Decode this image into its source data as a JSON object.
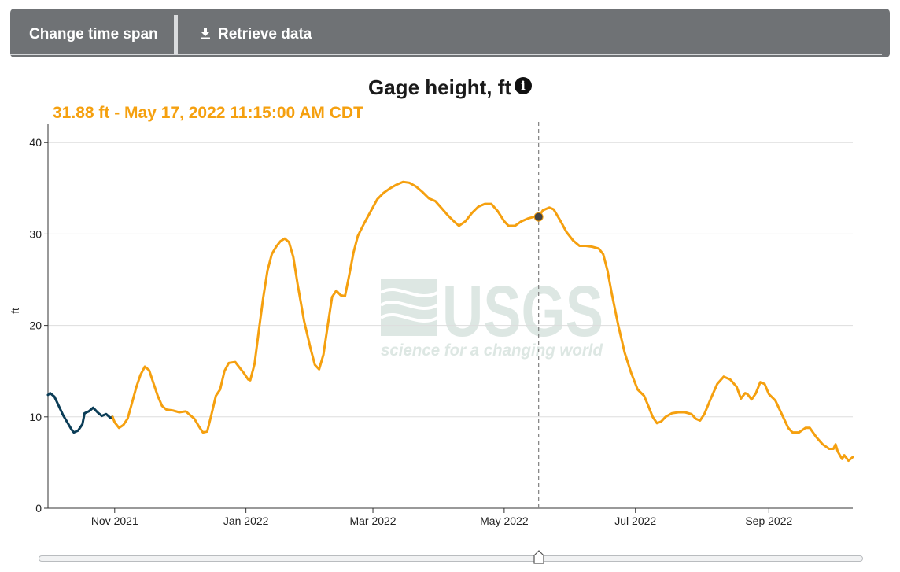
{
  "toolbar": {
    "change_time_span_label": "Change time span",
    "retrieve_data_label": "Retrieve data",
    "retrieve_icon": "download-icon"
  },
  "colors": {
    "approved": "#0b3d57",
    "provisional": "#f5a00f",
    "toolbar_bg": "#6f7275",
    "grid": "#dddddd",
    "watermark": "#dde7e3"
  },
  "tooltip": {
    "value_text": "31.88 ft - May 17, 2022 11:15:00 AM CDT",
    "date": "2022-05-17",
    "value": 31.88
  },
  "watermark": {
    "logo_text": "USGS",
    "tagline": "science for a changing world"
  },
  "slider": {
    "handle_date": "2022-05-17"
  },
  "chart_data": {
    "type": "line",
    "title": "Gage height, ft",
    "xlabel": "",
    "ylabel": "ft",
    "xlim": [
      "2021-10-01",
      "2022-10-10"
    ],
    "ylim": [
      0,
      42
    ],
    "yticks": [
      0,
      10,
      20,
      30,
      40
    ],
    "xticks": [
      {
        "date": "2021-11-01",
        "label": "Nov 2021"
      },
      {
        "date": "2022-01-01",
        "label": "Jan 2022"
      },
      {
        "date": "2022-03-01",
        "label": "Mar 2022"
      },
      {
        "date": "2022-05-01",
        "label": "May 2022"
      },
      {
        "date": "2022-07-01",
        "label": "Jul 2022"
      },
      {
        "date": "2022-09-01",
        "label": "Sep 2022"
      }
    ],
    "grid": true,
    "series": [
      {
        "status": "approved",
        "color": "#0b3d57",
        "points": [
          [
            "2021-10-01",
            12.4
          ],
          [
            "2021-10-02",
            12.6
          ],
          [
            "2021-10-04",
            12.2
          ],
          [
            "2021-10-06",
            11.2
          ],
          [
            "2021-10-08",
            10.2
          ],
          [
            "2021-10-10",
            9.4
          ],
          [
            "2021-10-12",
            8.6
          ],
          [
            "2021-10-13",
            8.3
          ],
          [
            "2021-10-15",
            8.5
          ],
          [
            "2021-10-17",
            9.2
          ],
          [
            "2021-10-18",
            10.4
          ],
          [
            "2021-10-20",
            10.6
          ],
          [
            "2021-10-22",
            11.0
          ],
          [
            "2021-10-24",
            10.5
          ],
          [
            "2021-10-26",
            10.1
          ],
          [
            "2021-10-28",
            10.3
          ],
          [
            "2021-10-30",
            9.9
          ],
          [
            "2021-10-31",
            10.0
          ]
        ]
      },
      {
        "status": "provisional",
        "color": "#f5a00f",
        "points": [
          [
            "2021-10-31",
            10.0
          ],
          [
            "2021-11-01",
            9.4
          ],
          [
            "2021-11-03",
            8.8
          ],
          [
            "2021-11-05",
            9.1
          ],
          [
            "2021-11-07",
            9.8
          ],
          [
            "2021-11-09",
            11.5
          ],
          [
            "2021-11-11",
            13.2
          ],
          [
            "2021-11-13",
            14.6
          ],
          [
            "2021-11-15",
            15.5
          ],
          [
            "2021-11-17",
            15.1
          ],
          [
            "2021-11-19",
            13.7
          ],
          [
            "2021-11-21",
            12.3
          ],
          [
            "2021-11-23",
            11.2
          ],
          [
            "2021-11-25",
            10.8
          ],
          [
            "2021-11-28",
            10.7
          ],
          [
            "2021-12-01",
            10.5
          ],
          [
            "2021-12-04",
            10.6
          ],
          [
            "2021-12-06",
            10.2
          ],
          [
            "2021-12-08",
            9.8
          ],
          [
            "2021-12-10",
            9.0
          ],
          [
            "2021-12-12",
            8.3
          ],
          [
            "2021-12-14",
            8.4
          ],
          [
            "2021-12-16",
            10.3
          ],
          [
            "2021-12-18",
            12.3
          ],
          [
            "2021-12-20",
            13.0
          ],
          [
            "2021-12-22",
            15.0
          ],
          [
            "2021-12-24",
            15.9
          ],
          [
            "2021-12-27",
            16.0
          ],
          [
            "2021-12-29",
            15.4
          ],
          [
            "2021-12-31",
            14.8
          ],
          [
            "2022-01-02",
            14.1
          ],
          [
            "2022-01-03",
            14.0
          ],
          [
            "2022-01-05",
            15.8
          ],
          [
            "2022-01-07",
            19.5
          ],
          [
            "2022-01-09",
            23.0
          ],
          [
            "2022-01-11",
            26.0
          ],
          [
            "2022-01-13",
            27.8
          ],
          [
            "2022-01-15",
            28.6
          ],
          [
            "2022-01-17",
            29.2
          ],
          [
            "2022-01-19",
            29.5
          ],
          [
            "2022-01-21",
            29.1
          ],
          [
            "2022-01-23",
            27.5
          ],
          [
            "2022-01-25",
            24.5
          ],
          [
            "2022-01-28",
            20.5
          ],
          [
            "2022-01-31",
            17.5
          ],
          [
            "2022-02-02",
            15.7
          ],
          [
            "2022-02-04",
            15.2
          ],
          [
            "2022-02-06",
            16.8
          ],
          [
            "2022-02-08",
            20.0
          ],
          [
            "2022-02-10",
            23.1
          ],
          [
            "2022-02-12",
            23.8
          ],
          [
            "2022-02-14",
            23.3
          ],
          [
            "2022-02-16",
            23.2
          ],
          [
            "2022-02-18",
            25.5
          ],
          [
            "2022-02-20",
            28.0
          ],
          [
            "2022-02-22",
            29.8
          ],
          [
            "2022-02-25",
            31.2
          ],
          [
            "2022-02-28",
            32.5
          ],
          [
            "2022-03-03",
            33.8
          ],
          [
            "2022-03-06",
            34.5
          ],
          [
            "2022-03-09",
            35.0
          ],
          [
            "2022-03-12",
            35.4
          ],
          [
            "2022-03-15",
            35.7
          ],
          [
            "2022-03-18",
            35.6
          ],
          [
            "2022-03-21",
            35.2
          ],
          [
            "2022-03-24",
            34.6
          ],
          [
            "2022-03-27",
            33.9
          ],
          [
            "2022-03-30",
            33.6
          ],
          [
            "2022-04-02",
            32.8
          ],
          [
            "2022-04-05",
            32.0
          ],
          [
            "2022-04-08",
            31.3
          ],
          [
            "2022-04-10",
            30.9
          ],
          [
            "2022-04-13",
            31.4
          ],
          [
            "2022-04-16",
            32.3
          ],
          [
            "2022-04-19",
            33.0
          ],
          [
            "2022-04-22",
            33.3
          ],
          [
            "2022-04-25",
            33.3
          ],
          [
            "2022-04-28",
            32.5
          ],
          [
            "2022-05-01",
            31.4
          ],
          [
            "2022-05-03",
            30.9
          ],
          [
            "2022-05-06",
            30.9
          ],
          [
            "2022-05-09",
            31.4
          ],
          [
            "2022-05-12",
            31.7
          ],
          [
            "2022-05-15",
            31.9
          ],
          [
            "2022-05-17",
            31.88
          ],
          [
            "2022-05-19",
            32.6
          ],
          [
            "2022-05-22",
            32.9
          ],
          [
            "2022-05-24",
            32.7
          ],
          [
            "2022-05-27",
            31.5
          ],
          [
            "2022-05-30",
            30.2
          ],
          [
            "2022-06-02",
            29.3
          ],
          [
            "2022-06-05",
            28.7
          ],
          [
            "2022-06-08",
            28.7
          ],
          [
            "2022-06-11",
            28.6
          ],
          [
            "2022-06-14",
            28.4
          ],
          [
            "2022-06-16",
            27.8
          ],
          [
            "2022-06-18",
            26.0
          ],
          [
            "2022-06-20",
            23.5
          ],
          [
            "2022-06-23",
            20.0
          ],
          [
            "2022-06-26",
            17.0
          ],
          [
            "2022-06-29",
            14.8
          ],
          [
            "2022-07-02",
            13.0
          ],
          [
            "2022-07-05",
            12.3
          ],
          [
            "2022-07-07",
            11.2
          ],
          [
            "2022-07-09",
            10.0
          ],
          [
            "2022-07-11",
            9.3
          ],
          [
            "2022-07-13",
            9.5
          ],
          [
            "2022-07-15",
            10.0
          ],
          [
            "2022-07-18",
            10.4
          ],
          [
            "2022-07-21",
            10.5
          ],
          [
            "2022-07-24",
            10.5
          ],
          [
            "2022-07-27",
            10.3
          ],
          [
            "2022-07-29",
            9.8
          ],
          [
            "2022-07-31",
            9.6
          ],
          [
            "2022-08-02",
            10.3
          ],
          [
            "2022-08-05",
            12.0
          ],
          [
            "2022-08-08",
            13.6
          ],
          [
            "2022-08-11",
            14.4
          ],
          [
            "2022-08-14",
            14.1
          ],
          [
            "2022-08-17",
            13.3
          ],
          [
            "2022-08-19",
            12.0
          ],
          [
            "2022-08-21",
            12.6
          ],
          [
            "2022-08-22",
            12.5
          ],
          [
            "2022-08-24",
            11.9
          ],
          [
            "2022-08-26",
            12.6
          ],
          [
            "2022-08-28",
            13.8
          ],
          [
            "2022-08-30",
            13.6
          ],
          [
            "2022-09-01",
            12.5
          ],
          [
            "2022-09-04",
            11.8
          ],
          [
            "2022-09-07",
            10.3
          ],
          [
            "2022-09-10",
            8.8
          ],
          [
            "2022-09-12",
            8.3
          ],
          [
            "2022-09-15",
            8.3
          ],
          [
            "2022-09-18",
            8.8
          ],
          [
            "2022-09-20",
            8.8
          ],
          [
            "2022-09-23",
            7.8
          ],
          [
            "2022-09-26",
            7.0
          ],
          [
            "2022-09-29",
            6.5
          ],
          [
            "2022-10-01",
            6.5
          ],
          [
            "2022-10-02",
            7.0
          ],
          [
            "2022-10-03",
            6.2
          ],
          [
            "2022-10-05",
            5.4
          ],
          [
            "2022-10-06",
            5.8
          ],
          [
            "2022-10-08",
            5.2
          ],
          [
            "2022-10-10",
            5.6
          ]
        ]
      }
    ]
  }
}
